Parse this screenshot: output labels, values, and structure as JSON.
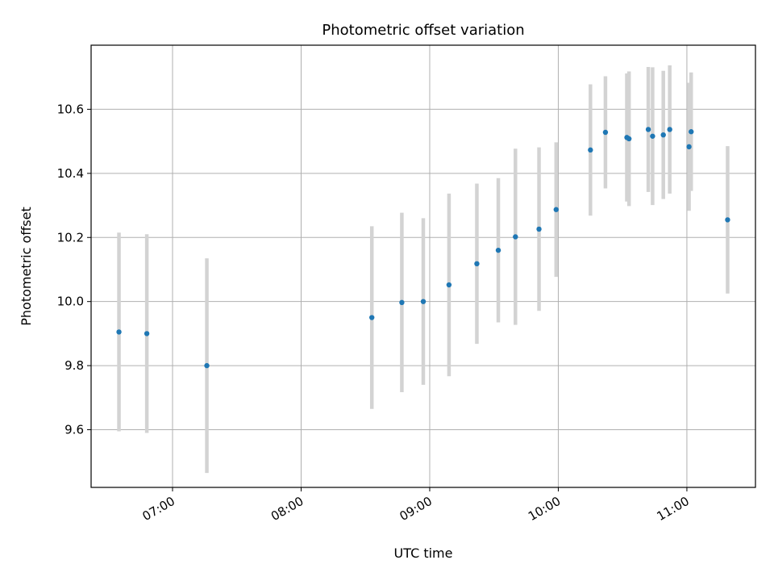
{
  "chart_data": {
    "type": "scatter",
    "title": "Photometric offset variation",
    "xlabel": "UTC time",
    "ylabel": "Photometric offset",
    "x_tick_labels": [
      "07:00",
      "08:00",
      "09:00",
      "10:00",
      "11:00"
    ],
    "x_ticks": [
      "07:00",
      "08:00",
      "09:00",
      "10:00",
      "11:00"
    ],
    "xlim": [
      "06:22",
      "11:32"
    ],
    "y_ticks": [
      9.6,
      9.8,
      10.0,
      10.2,
      10.4,
      10.6
    ],
    "y_tick_labels": [
      "9.6",
      "9.8",
      "10.0",
      "10.2",
      "10.4",
      "10.6"
    ],
    "ylim": [
      9.42,
      10.8
    ],
    "grid": true,
    "point_color": "#1f77b4",
    "errorbar_color": "#d3d3d3",
    "series": [
      {
        "points": [
          {
            "x": "06:35",
            "y": 9.905,
            "err": 0.31
          },
          {
            "x": "06:48",
            "y": 9.9,
            "err": 0.31
          },
          {
            "x": "07:16",
            "y": 9.8,
            "err": 0.335
          },
          {
            "x": "08:33",
            "y": 9.95,
            "err": 0.285
          },
          {
            "x": "08:47",
            "y": 9.997,
            "err": 0.28
          },
          {
            "x": "08:57",
            "y": 10.0,
            "err": 0.26
          },
          {
            "x": "09:09",
            "y": 10.052,
            "err": 0.285
          },
          {
            "x": "09:22",
            "y": 10.118,
            "err": 0.25
          },
          {
            "x": "09:32",
            "y": 10.16,
            "err": 0.225
          },
          {
            "x": "09:40",
            "y": 10.202,
            "err": 0.275
          },
          {
            "x": "09:51",
            "y": 10.226,
            "err": 0.255
          },
          {
            "x": "09:59",
            "y": 10.287,
            "err": 0.21
          },
          {
            "x": "10:15",
            "y": 10.473,
            "err": 0.205
          },
          {
            "x": "10:22",
            "y": 10.528,
            "err": 0.175
          },
          {
            "x": "10:32",
            "y": 10.512,
            "err": 0.2
          },
          {
            "x": "10:33",
            "y": 10.508,
            "err": 0.21
          },
          {
            "x": "10:42",
            "y": 10.537,
            "err": 0.195
          },
          {
            "x": "10:44",
            "y": 10.516,
            "err": 0.215
          },
          {
            "x": "10:49",
            "y": 10.52,
            "err": 0.2
          },
          {
            "x": "10:52",
            "y": 10.537,
            "err": 0.2
          },
          {
            "x": "11:01",
            "y": 10.483,
            "err": 0.2
          },
          {
            "x": "11:02",
            "y": 10.53,
            "err": 0.185
          },
          {
            "x": "11:19",
            "y": 10.255,
            "err": 0.23
          }
        ]
      }
    ]
  }
}
